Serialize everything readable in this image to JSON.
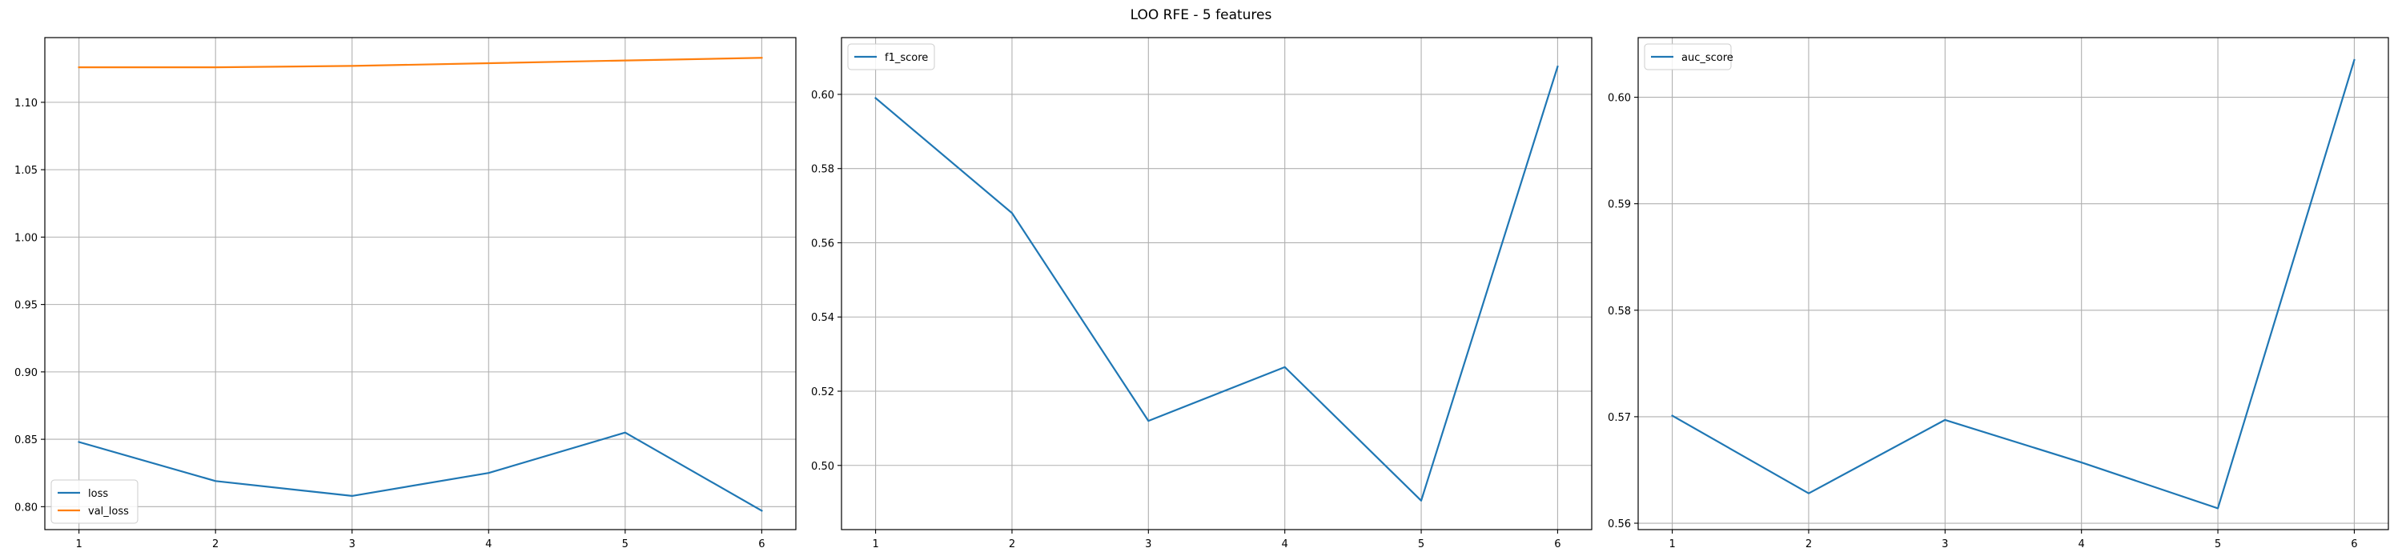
{
  "figure": {
    "title": "LOO RFE - 5 features"
  },
  "chart_data": [
    {
      "type": "line",
      "x": [
        1,
        2,
        3,
        4,
        5,
        6
      ],
      "series": [
        {
          "name": "loss",
          "values": [
            0.848,
            0.819,
            0.808,
            0.825,
            0.855,
            0.797
          ],
          "color": "#1f77b4"
        },
        {
          "name": "val_loss",
          "values": [
            1.126,
            1.126,
            1.127,
            1.129,
            1.131,
            1.133
          ],
          "color": "#ff7f0e"
        }
      ],
      "xlim": [
        0.75,
        6.25
      ],
      "ylim": [
        0.783,
        1.148
      ],
      "xticks": [
        1,
        2,
        3,
        4,
        5,
        6
      ],
      "yticks": [
        0.8,
        0.85,
        0.9,
        0.95,
        1.0,
        1.05,
        1.1
      ],
      "ytick_labels": [
        "0.80",
        "0.85",
        "0.90",
        "0.95",
        "1.00",
        "1.05",
        "1.10"
      ],
      "grid": true,
      "legend_position": "lower-left"
    },
    {
      "type": "line",
      "x": [
        1,
        2,
        3,
        4,
        5,
        6
      ],
      "series": [
        {
          "name": "f1_score",
          "values": [
            0.599,
            0.568,
            0.512,
            0.5265,
            0.4905,
            0.6075
          ],
          "color": "#1f77b4"
        }
      ],
      "xlim": [
        0.75,
        6.25
      ],
      "ylim": [
        0.4827,
        0.6153
      ],
      "xticks": [
        1,
        2,
        3,
        4,
        5,
        6
      ],
      "yticks": [
        0.5,
        0.52,
        0.54,
        0.56,
        0.58,
        0.6
      ],
      "ytick_labels": [
        "0.50",
        "0.52",
        "0.54",
        "0.56",
        "0.58",
        "0.60"
      ],
      "grid": true,
      "legend_position": "upper-left"
    },
    {
      "type": "line",
      "x": [
        1,
        2,
        3,
        4,
        5,
        6
      ],
      "series": [
        {
          "name": "auc_score",
          "values": [
            0.5701,
            0.5628,
            0.5697,
            0.5657,
            0.5614,
            0.6035
          ],
          "color": "#1f77b4"
        }
      ],
      "xlim": [
        0.75,
        6.25
      ],
      "ylim": [
        0.5594,
        0.6056
      ],
      "xticks": [
        1,
        2,
        3,
        4,
        5,
        6
      ],
      "yticks": [
        0.56,
        0.57,
        0.58,
        0.59,
        0.6
      ],
      "ytick_labels": [
        "0.56",
        "0.57",
        "0.58",
        "0.59",
        "0.60"
      ],
      "grid": true,
      "legend_position": "upper-left"
    }
  ]
}
